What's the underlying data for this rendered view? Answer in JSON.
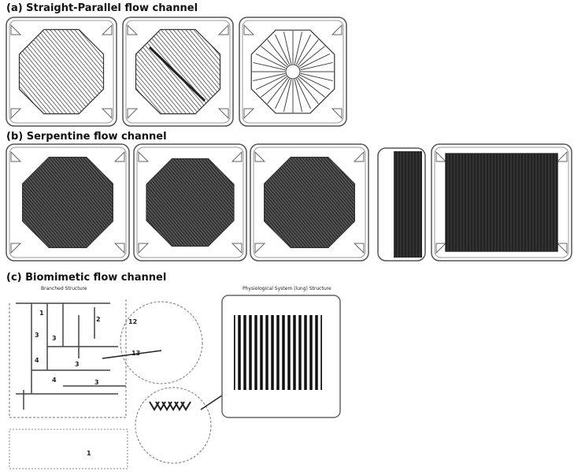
{
  "panels": [
    {
      "label": "(a) Straight-Parallel flow channel"
    },
    {
      "label": "(b) Serpentine flow channel"
    },
    {
      "label": "(c) Biomimetic flow channel",
      "captions": [
        "Branched Structure",
        "Physiological System (lung) Structure"
      ],
      "numbers": [
        "1",
        "2",
        "3",
        "3",
        "4",
        "4",
        "3",
        "3",
        "12",
        "13",
        "1"
      ]
    }
  ]
}
